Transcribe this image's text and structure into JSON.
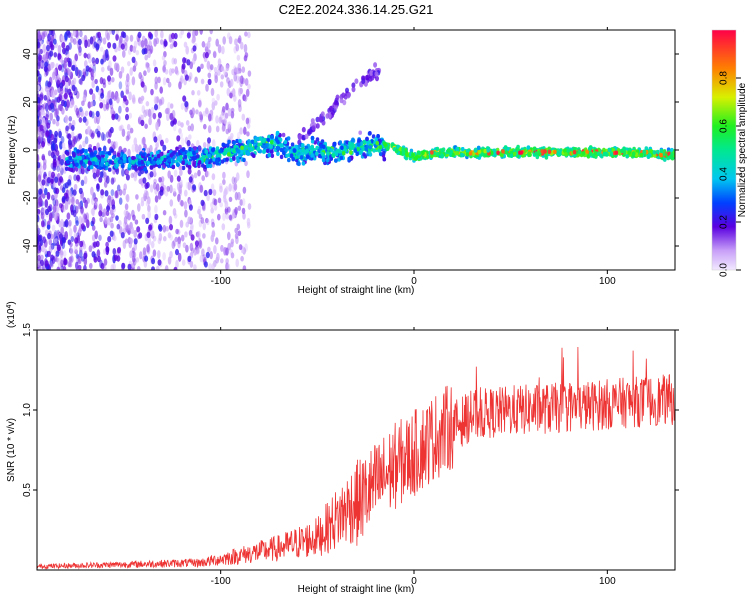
{
  "page_title": "C2E2.2024.336.14.25.G21",
  "chart_data": [
    {
      "type": "heatmap",
      "xlabel": "Height of straight line (km)",
      "ylabel": "Frequency (Hz)",
      "xlim": [
        -195,
        135
      ],
      "ylim": [
        -50,
        50
      ],
      "xticks": [
        -100,
        0,
        100
      ],
      "yticks": [
        -40,
        -20,
        0,
        20,
        40
      ],
      "colorbar": {
        "label": "Normalized spectral amplitude",
        "range": [
          0,
          1
        ],
        "ticks": [
          0.0,
          0.2,
          0.4,
          0.6,
          0.8
        ]
      },
      "ridge": [
        {
          "x": -175,
          "f": -4
        },
        {
          "x": -160,
          "f": -4
        },
        {
          "x": -145,
          "f": -5
        },
        {
          "x": -130,
          "f": -4
        },
        {
          "x": -120,
          "f": -3
        },
        {
          "x": -110,
          "f": -3
        },
        {
          "x": -100,
          "f": -2
        },
        {
          "x": -90,
          "f": 0
        },
        {
          "x": -80,
          "f": 2
        },
        {
          "x": -70,
          "f": 3
        },
        {
          "x": -60,
          "f": -2
        },
        {
          "x": -50,
          "f": 0
        },
        {
          "x": -40,
          "f": -1
        },
        {
          "x": -30,
          "f": 1
        },
        {
          "x": -20,
          "f": 2
        },
        {
          "x": -10,
          "f": 1
        },
        {
          "x": 0,
          "f": -3
        },
        {
          "x": 10,
          "f": -1
        },
        {
          "x": 30,
          "f": -1
        },
        {
          "x": 60,
          "f": -1
        },
        {
          "x": 90,
          "f": -1
        },
        {
          "x": 110,
          "f": -1
        },
        {
          "x": 135,
          "f": -2
        }
      ]
    },
    {
      "type": "line",
      "xlabel": "Height of straight line (km)",
      "ylabel": "SNR (10 * v/v)",
      "yscale_label": "(x10",
      "yscale_exp": "4",
      "xlim": [
        -195,
        135
      ],
      "ylim": [
        0,
        1.5
      ],
      "xticks": [
        -100,
        0,
        100
      ],
      "yticks": [
        0.5,
        1.0,
        1.5
      ],
      "series_color": "#ee3333",
      "trend": [
        {
          "x": -195,
          "y": 0.02
        },
        {
          "x": -150,
          "y": 0.03
        },
        {
          "x": -110,
          "y": 0.04
        },
        {
          "x": -90,
          "y": 0.08
        },
        {
          "x": -70,
          "y": 0.12
        },
        {
          "x": -50,
          "y": 0.18
        },
        {
          "x": -40,
          "y": 0.28
        },
        {
          "x": -30,
          "y": 0.38
        },
        {
          "x": -20,
          "y": 0.5
        },
        {
          "x": -10,
          "y": 0.62
        },
        {
          "x": 0,
          "y": 0.7
        },
        {
          "x": 10,
          "y": 0.8
        },
        {
          "x": 20,
          "y": 0.88
        },
        {
          "x": 30,
          "y": 0.95
        },
        {
          "x": 50,
          "y": 0.98
        },
        {
          "x": 80,
          "y": 1.0
        },
        {
          "x": 110,
          "y": 1.03
        },
        {
          "x": 135,
          "y": 1.05
        }
      ]
    }
  ]
}
